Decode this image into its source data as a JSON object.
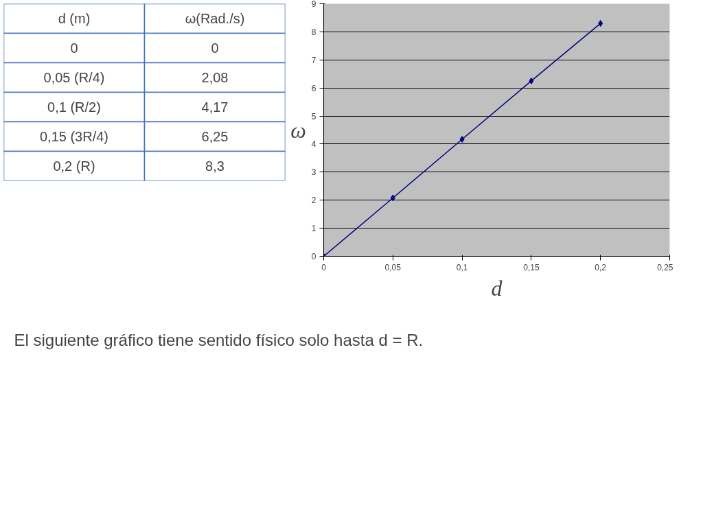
{
  "chart_data": {
    "type": "line",
    "xlabel": "d",
    "ylabel": "ω",
    "x": [
      0,
      0.05,
      0.1,
      0.15,
      0.2
    ],
    "series": [
      {
        "color": "#000080",
        "values": [
          0,
          2.08,
          4.17,
          6.25,
          8.3
        ]
      }
    ],
    "xlim": [
      0,
      0.25
    ],
    "xticks": [
      0,
      {
        "value": 0.05,
        "label": "0,05"
      },
      {
        "value": 0.1,
        "label": "0,1"
      },
      {
        "value": 0.15,
        "label": "0,15"
      },
      {
        "value": 0.2,
        "label": "0,2"
      },
      {
        "value": 0.25,
        "label": "0,25"
      }
    ],
    "ylim": [
      0,
      9
    ],
    "yticks": [
      0,
      1,
      2,
      3,
      4,
      5,
      6,
      7,
      8,
      9
    ],
    "grid": "y",
    "marker": "diamond",
    "line_style": "solid",
    "annotations": [
      "d (m)",
      "ω(Rad./s)",
      "0",
      "0,05 (R/4)",
      "0,1 (R/2)",
      "0,15 (3R/4)",
      "0,2 (R)",
      "El siguiente gráfico tiene sentido físico solo hasta d = R.",
      "0",
      "2,08",
      "4,17",
      "6,25",
      "8,3"
    ]
  }
}
